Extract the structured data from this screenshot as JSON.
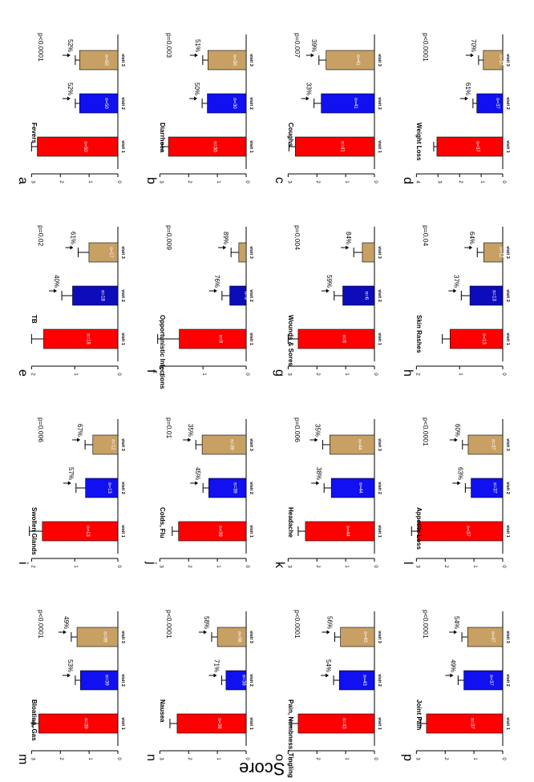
{
  "figure": {
    "ylabel": "Score",
    "x_labels": [
      "visit 1",
      "visit 2",
      "visit 3"
    ]
  },
  "colors": {
    "visit1": "#ff0000",
    "visit2": "#1010f0",
    "visit3": "#c8a064",
    "visit2_dark": "#0c0cbb"
  },
  "chart_data": [
    {
      "type": "bar",
      "letter": "a",
      "title": "Fevers",
      "p": "p<0.0001",
      "categories": [
        "visit 1",
        "visit 2",
        "visit 3"
      ],
      "values": [
        2.8,
        1.33,
        1.33
      ],
      "errors": [
        0.2,
        0.15,
        0.15
      ],
      "n": [
        "n=50",
        "n=50",
        "n=50"
      ],
      "pct": [
        "",
        "52%",
        "52%"
      ],
      "ylim": [
        0,
        3
      ],
      "ticks": [
        0,
        1,
        2,
        3
      ]
    },
    {
      "type": "bar",
      "letter": "b",
      "title": "Diarrhoea",
      "p": "p=0.003",
      "categories": [
        "visit 1",
        "visit 2",
        "visit 3"
      ],
      "values": [
        2.7,
        1.35,
        1.33
      ],
      "errors": [
        0.22,
        0.18,
        0.18
      ],
      "n": [
        "n=30",
        "n=30",
        "n=30"
      ],
      "pct": [
        "",
        "50%",
        "51%"
      ],
      "ylim": [
        0,
        3
      ],
      "ticks": [
        0,
        1,
        2,
        3
      ]
    },
    {
      "type": "bar",
      "letter": "c",
      "title": "Coughs",
      "p": "p=0.007",
      "categories": [
        "visit 1",
        "visit 2",
        "visit 3"
      ],
      "values": [
        2.75,
        1.85,
        1.68
      ],
      "errors": [
        0.22,
        0.25,
        0.25
      ],
      "n": [
        "n=41",
        "n=41",
        "n=41"
      ],
      "pct": [
        "",
        "33%",
        "39%"
      ],
      "ylim": [
        0,
        3
      ],
      "ticks": [
        0,
        1,
        2,
        3
      ]
    },
    {
      "type": "bar",
      "letter": "d",
      "title": "Weight Loss",
      "p": "p<0.0001",
      "categories": [
        "visit 1",
        "visit 2",
        "visit 3"
      ],
      "values": [
        3.05,
        1.2,
        0.9
      ],
      "errors": [
        0.15,
        0.18,
        0.22
      ],
      "n": [
        "n=37",
        "n=37",
        "n=37"
      ],
      "pct": [
        "",
        "61%",
        "70%"
      ],
      "ylim": [
        0,
        4
      ],
      "ticks": [
        0,
        1,
        2,
        3,
        4
      ]
    },
    {
      "type": "bar",
      "letter": "e",
      "title": "TB",
      "p": "p=0.02",
      "categories": [
        "visit 1",
        "visit 2",
        "visit 3"
      ],
      "values": [
        1.72,
        1.05,
        0.67
      ],
      "errors": [
        0.28,
        0.25,
        0.25
      ],
      "n": [
        "n=18",
        "n=18",
        "n=17"
      ],
      "pct": [
        "",
        "40%",
        "61%"
      ],
      "ylim": [
        0,
        2
      ],
      "ticks": [
        0,
        1,
        2
      ]
    },
    {
      "type": "bar",
      "letter": "f",
      "title": "Opportunistic Infections",
      "p": "p=0.009",
      "categories": [
        "visit 1",
        "visit 2",
        "visit 3"
      ],
      "values": [
        1.55,
        0.38,
        0.17
      ],
      "errors": [
        0.5,
        0.18,
        0.18
      ],
      "n": [
        "n=9",
        "n=9",
        "n=7"
      ],
      "pct": [
        "",
        "76%",
        "89%"
      ],
      "ylim": [
        0,
        2
      ],
      "ticks": [
        0,
        1,
        2
      ]
    },
    {
      "type": "bar",
      "letter": "g",
      "title": "Wounds & Sores",
      "p": "p=0.004",
      "categories": [
        "visit 1",
        "visit 2",
        "visit 3"
      ],
      "values": [
        2.65,
        1.1,
        0.42
      ],
      "errors": [
        0.35,
        0.3,
        0.3
      ],
      "n": [
        "n=6",
        "n=6",
        "n=6"
      ],
      "pct": [
        "",
        "59%",
        "84%"
      ],
      "ylim": [
        0,
        3
      ],
      "ticks": [
        0,
        1,
        2,
        3
      ]
    },
    {
      "type": "bar",
      "letter": "h",
      "title": "Skin Rashes",
      "p": "p=0.04",
      "categories": [
        "visit 1",
        "visit 2",
        "visit 3"
      ],
      "values": [
        1.22,
        0.76,
        0.44
      ],
      "errors": [
        0.18,
        0.2,
        0.15
      ],
      "n": [
        "n=13",
        "n=13",
        "n=12"
      ],
      "pct": [
        "",
        "37%",
        "64%"
      ],
      "ylim": [
        0,
        2
      ],
      "ticks": [
        0,
        1,
        2
      ]
    },
    {
      "type": "bar",
      "letter": "i",
      "title": "Swollen Glands",
      "p": "p=0.006",
      "categories": [
        "visit 1",
        "visit 2",
        "visit 3"
      ],
      "values": [
        1.75,
        0.75,
        0.58
      ],
      "errors": [
        0.3,
        0.22,
        0.18
      ],
      "n": [
        "n=13",
        "n=13",
        "n=12"
      ],
      "pct": [
        "",
        "57%",
        "67%"
      ],
      "ylim": [
        0,
        2
      ],
      "ticks": [
        0,
        1,
        2
      ]
    },
    {
      "type": "bar",
      "letter": "j",
      "title": "Colds, Flu",
      "p": "p=0.01",
      "categories": [
        "visit 1",
        "visit 2",
        "visit 3"
      ],
      "values": [
        2.35,
        1.3,
        1.53
      ],
      "errors": [
        0.22,
        0.2,
        0.22
      ],
      "n": [
        "n=39",
        "n=39",
        "n=39"
      ],
      "pct": [
        "",
        "45%",
        "35%"
      ],
      "ylim": [
        0,
        3
      ],
      "ticks": [
        0,
        1,
        2,
        3
      ]
    },
    {
      "type": "bar",
      "letter": "k",
      "title": "Headache",
      "p": "p=0.006",
      "categories": [
        "visit 1",
        "visit 2",
        "visit 3"
      ],
      "values": [
        2.4,
        1.5,
        1.55
      ],
      "errors": [
        0.25,
        0.25,
        0.25
      ],
      "n": [
        "n=44",
        "n=44",
        "n=44"
      ],
      "pct": [
        "",
        "38%",
        "35%"
      ],
      "ylim": [
        0,
        3
      ],
      "ticks": [
        0,
        1,
        2,
        3
      ]
    },
    {
      "type": "bar",
      "letter": "l",
      "title": "Appetite Loss",
      "p": "p<0.0001",
      "categories": [
        "visit 1",
        "visit 2",
        "visit 3"
      ],
      "values": [
        2.95,
        1.1,
        1.2
      ],
      "errors": [
        0.22,
        0.2,
        0.2
      ],
      "n": [
        "n=37",
        "n=37",
        "n=37"
      ],
      "pct": [
        "",
        "63%",
        "60%"
      ],
      "ylim": [
        0,
        3
      ],
      "ticks": [
        0,
        1,
        2,
        3
      ]
    },
    {
      "type": "bar",
      "letter": "m",
      "title": "Bloating, Gas",
      "p": "p<0.0001",
      "categories": [
        "visit 1",
        "visit 2",
        "visit 3"
      ],
      "values": [
        2.75,
        1.3,
        1.42
      ],
      "errors": [
        0.2,
        0.18,
        0.2
      ],
      "n": [
        "n=39",
        "n=39",
        "n=39"
      ],
      "pct": [
        "",
        "53%",
        "49%"
      ],
      "ylim": [
        0,
        3
      ],
      "ticks": [
        0,
        1,
        2,
        3
      ]
    },
    {
      "type": "bar",
      "letter": "n",
      "title": "Nausea",
      "p": "p<0.0001",
      "categories": [
        "visit 1",
        "visit 2",
        "visit 3"
      ],
      "values": [
        2.4,
        0.7,
        1.0
      ],
      "errors": [
        0.25,
        0.15,
        0.2
      ],
      "n": [
        "n=38",
        "n=38",
        "n=38"
      ],
      "pct": [
        "",
        "71%",
        "58%"
      ],
      "ylim": [
        0,
        3
      ],
      "ticks": [
        0,
        1,
        2,
        3
      ]
    },
    {
      "type": "bar",
      "letter": "o",
      "title": "Pain, Numbness, Tingling",
      "p": "p<0.0001",
      "categories": [
        "visit 1",
        "visit 2",
        "visit 3"
      ],
      "values": [
        2.65,
        1.22,
        1.18
      ],
      "errors": [
        0.25,
        0.2,
        0.2
      ],
      "n": [
        "n=43",
        "n=43",
        "n=43"
      ],
      "pct": [
        "",
        "54%",
        "56%"
      ],
      "ylim": [
        0,
        3
      ],
      "ticks": [
        0,
        1,
        2,
        3
      ]
    },
    {
      "type": "bar",
      "letter": "p",
      "title": "Joint Pain",
      "p": "p<0.0001",
      "categories": [
        "visit 1",
        "visit 2",
        "visit 3"
      ],
      "values": [
        2.65,
        1.35,
        1.22
      ],
      "errors": [
        0.2,
        0.2,
        0.2
      ],
      "n": [
        "n=37",
        "n=37",
        "n=37"
      ],
      "pct": [
        "",
        "49%",
        "54%"
      ],
      "ylim": [
        0,
        3
      ],
      "ticks": [
        0,
        1,
        2,
        3
      ]
    }
  ]
}
